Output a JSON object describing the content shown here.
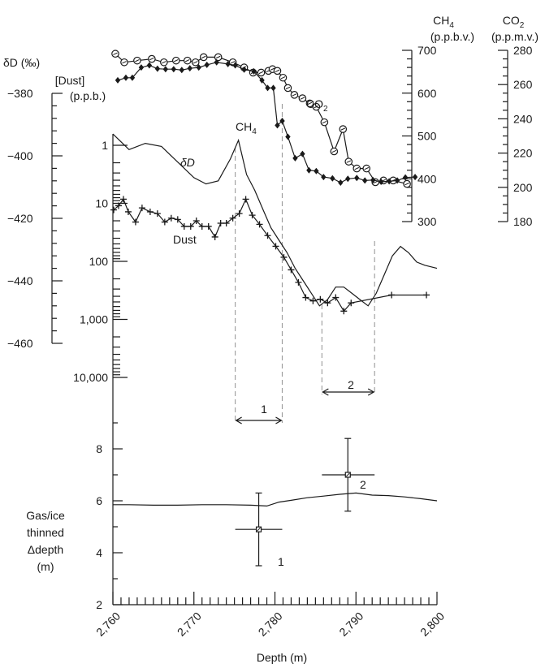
{
  "chart_data": [
    {
      "type": "line",
      "x_axis": {
        "label": "Depth (m)",
        "range": [
          2760,
          2800
        ],
        "ticks": [
          "2,760",
          "2,770",
          "2,780",
          "2,790",
          "2,800"
        ]
      },
      "axes": {
        "deltaD": {
          "label": "δD (‰)",
          "range": [
            -460,
            -380
          ],
          "ticks": [
            "-380",
            "-400",
            "-420",
            "-440",
            "-460"
          ]
        },
        "dust": {
          "label": "[Dust]",
          "unit": "(p.p.b.)",
          "scale": "log",
          "range": [
            1,
            10000
          ],
          "ticks": [
            "1",
            "10",
            "100",
            "1,000",
            "10,000"
          ]
        },
        "ch4": {
          "label": "CH",
          "sub": "4",
          "unit": "(p.p.b.v.)",
          "range": [
            300,
            700
          ],
          "ticks": [
            "700",
            "600",
            "500",
            "400",
            "300"
          ]
        },
        "co2": {
          "label": "CO",
          "sub": "2",
          "unit": "(p.p.m.v.)",
          "range": [
            180,
            280
          ],
          "ticks": [
            "280",
            "260",
            "240",
            "220",
            "200",
            "180"
          ]
        }
      },
      "series": [
        {
          "name": "CO2",
          "label": "CO",
          "label_sub": "2",
          "axis": "co2",
          "marker": "circle",
          "x": [
            2760.3,
            2761.4,
            2763.0,
            2764.8,
            2766.3,
            2767.8,
            2769.2,
            2770.2,
            2771.2,
            2773.0,
            2774.8,
            2776.2,
            2777.3,
            2778.3,
            2779.2,
            2779.7,
            2780.3,
            2781.0,
            2781.6,
            2782.4,
            2783.4,
            2784.3,
            2785.1,
            2786.1,
            2787.3,
            2788.4,
            2789.1,
            2790.1,
            2791.3,
            2792.4,
            2793.4,
            2794.6,
            2796.3
          ],
          "values": [
            278,
            273,
            274,
            275,
            273,
            274,
            274,
            273,
            276,
            276,
            273,
            270,
            267,
            267,
            268,
            269,
            268,
            264,
            258,
            254,
            252,
            249,
            247,
            238,
            221,
            234,
            215,
            211,
            211,
            203,
            204,
            204,
            202
          ]
        },
        {
          "name": "CH4",
          "label": "CH",
          "label_sub": "4",
          "axis": "ch4",
          "marker": "diamond",
          "x": [
            2760.6,
            2761.6,
            2762.4,
            2763.5,
            2764.5,
            2765.5,
            2766.5,
            2767.5,
            2768.5,
            2769.5,
            2770.6,
            2771.6,
            2772.8,
            2774.2,
            2775.1,
            2776.2,
            2777.4,
            2778.4,
            2779.1,
            2779.8,
            2780.3,
            2780.9,
            2781.6,
            2782.5,
            2783.4,
            2784.2,
            2785.1,
            2786.0,
            2787.1,
            2788.1,
            2789.0,
            2790.1,
            2791.1,
            2792.1,
            2793.1,
            2794.1,
            2795.1,
            2796.1,
            2797.3
          ],
          "values": [
            630,
            636,
            636,
            660,
            665,
            657,
            656,
            656,
            654,
            658,
            660,
            666,
            672,
            668,
            665,
            655,
            651,
            630,
            612,
            612,
            525,
            535,
            498,
            448,
            458,
            420,
            418,
            404,
            401,
            391,
            400,
            402,
            396,
            397,
            393,
            394,
            396,
            403,
            404
          ]
        },
        {
          "name": "δD",
          "label": "δD",
          "axis": "deltaD",
          "marker": "none",
          "x": [
            2760,
            2762,
            2764,
            2766,
            2768,
            2770,
            2771.5,
            2773,
            2774.5,
            2775.5,
            2776.5,
            2777.5,
            2778.5,
            2779.5,
            2780.5,
            2781.5,
            2782.5,
            2783.5,
            2784.5,
            2785.5,
            2786.5,
            2787.5,
            2788.5,
            2789.5,
            2790.5,
            2791.5,
            2792.5,
            2793.5,
            2794.5,
            2795.5,
            2796.5,
            2797.5,
            2798.5,
            2800
          ],
          "values": [
            -393,
            -398,
            -396,
            -397,
            -402,
            -407,
            -409,
            -408,
            -401,
            -395,
            -406,
            -411,
            -417,
            -423,
            -427,
            -431,
            -436,
            -440,
            -444,
            -448,
            -446,
            -442,
            -442,
            -444,
            -446,
            -448,
            -444,
            -438,
            -432,
            -429,
            -431,
            -434,
            -435,
            -436
          ]
        },
        {
          "name": "Dust",
          "label": "Dust",
          "axis": "dust",
          "marker": "plus",
          "x": [
            2760.1,
            2760.7,
            2761.3,
            2761.9,
            2762.8,
            2763.6,
            2764.6,
            2765.5,
            2766.4,
            2767.2,
            2768.0,
            2768.8,
            2769.6,
            2770.3,
            2771.0,
            2771.8,
            2772.6,
            2773.3,
            2774.0,
            2774.8,
            2775.6,
            2776.4,
            2777.2,
            2778.1,
            2779.1,
            2780.1,
            2781.1,
            2782.0,
            2782.9,
            2783.8,
            2784.7,
            2785.6,
            2786.5,
            2787.5,
            2788.5,
            2789.4,
            2794.4,
            2798.7
          ],
          "values": [
            13,
            11,
            8.5,
            14,
            21,
            12,
            14,
            15,
            21,
            18,
            19,
            25,
            25,
            20,
            25,
            25,
            38,
            22,
            22,
            18,
            15,
            8.5,
            16,
            23,
            36,
            55,
            85,
            140,
            230,
            420,
            480,
            450,
            520,
            420,
            720,
            520,
            380,
            380
          ]
        },
        {
          "name": "Gas/ice thinned Δdepth",
          "axis": "gas_ice",
          "marker": "none",
          "x": [
            2760,
            2762,
            2765,
            2768,
            2771,
            2774,
            2777,
            2779,
            2780.5,
            2782,
            2784,
            2786,
            2788,
            2790,
            2792,
            2794,
            2796,
            2798,
            2800
          ],
          "values": [
            5.85,
            5.85,
            5.83,
            5.83,
            5.85,
            5.85,
            5.83,
            5.8,
            5.95,
            6.02,
            6.12,
            6.18,
            6.25,
            6.3,
            6.22,
            6.2,
            6.15,
            6.08,
            6.0
          ]
        }
      ],
      "bottom_panel": {
        "label_lines": [
          "Gas/ice",
          "thinned",
          "Δdepth",
          "(m)"
        ],
        "range": [
          2,
          9
        ],
        "ticks": [
          "2",
          "4",
          "6",
          "8"
        ],
        "points": [
          {
            "id": "1",
            "x": 2778,
            "y": 4.9,
            "y_err": [
              3.5,
              6.3
            ],
            "x_err": [
              2775.1,
              2780.9
            ]
          },
          {
            "id": "2",
            "x": 2789,
            "y": 7.0,
            "y_err": [
              5.6,
              8.4
            ],
            "x_err": [
              2785.8,
              2792.3
            ]
          }
        ]
      },
      "intervals": [
        {
          "id": "1",
          "x": [
            2775.1,
            2780.9
          ]
        },
        {
          "id": "2",
          "x": [
            2785.8,
            2792.3
          ]
        }
      ]
    }
  ]
}
